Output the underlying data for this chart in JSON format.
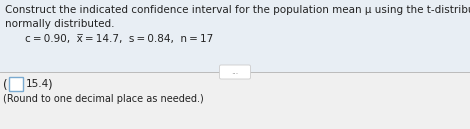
{
  "line1": "Construct the indicated confidence interval for the population mean μ using the t-distribution. Assume the population is",
  "line2": "normally distributed.",
  "param_line": "c = 0.90,  x̅ = 14.7,  s = 0.84,  n = 17",
  "answer_value": "15.4",
  "answer_note": "(Round to one decimal place as needed.)",
  "dots": "...",
  "top_bg": "#e8eef4",
  "bottom_bg": "#f0f0f0",
  "text_color": "#222222",
  "gray_text": "#888888",
  "box_stroke": "#7aaad0",
  "divider_color": "#bbbbbb",
  "main_fontsize": 7.5,
  "small_fontsize": 7.0,
  "param_indent": 0.05
}
